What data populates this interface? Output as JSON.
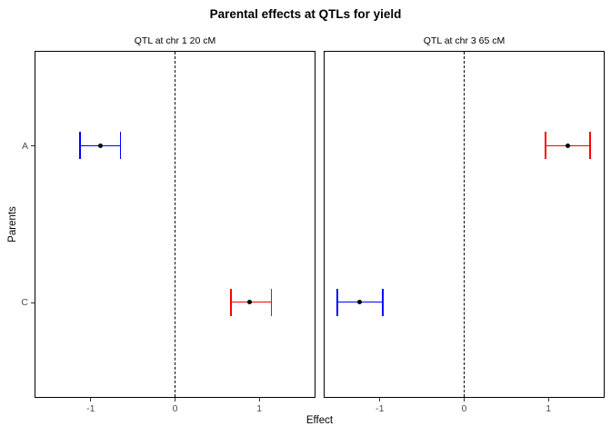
{
  "chart_data": {
    "type": "scatter",
    "variant": "faceted-pointrange-with-horizontal-errorbars",
    "title": "Parental effects at QTLs for yield",
    "xlabel": "Effect",
    "ylabel": "Parents",
    "xlim": [
      -1.65,
      1.65
    ],
    "x_ticks": [
      -1,
      0,
      1
    ],
    "y_categories": [
      "A",
      "C"
    ],
    "reference_line_x": 0,
    "grid": "off",
    "legend_position": "none",
    "palette": {
      "blue": "#0000ff",
      "red": "#ff0000",
      "point": "#000000",
      "axis_text": "#4d4d4d",
      "axis_title": "#000000",
      "panel_border": "#000000",
      "reference_line": "#000000",
      "background": "#ffffff"
    },
    "facets": [
      {
        "label": "QTL at chr 1 20 cM",
        "points": [
          {
            "parent": "A",
            "estimate": -0.88,
            "ci_low": -1.12,
            "ci_high": -0.64,
            "color": "#0000ff"
          },
          {
            "parent": "C",
            "estimate": 0.89,
            "ci_low": 0.67,
            "ci_high": 1.15,
            "color": "#ff0000"
          }
        ]
      },
      {
        "label": "QTL at chr 3 65 cM",
        "points": [
          {
            "parent": "A",
            "estimate": 1.24,
            "ci_low": 0.97,
            "ci_high": 1.5,
            "color": "#ff0000"
          },
          {
            "parent": "C",
            "estimate": -1.24,
            "ci_low": -1.5,
            "ci_high": -0.96,
            "color": "#0000ff"
          }
        ]
      }
    ]
  }
}
